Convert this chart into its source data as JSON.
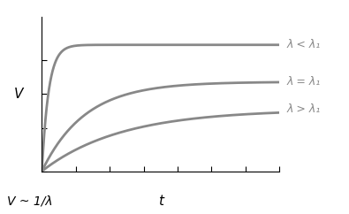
{
  "title": "",
  "xlabel": "t",
  "ylabel": "V",
  "annotation": "V ~ 1/λ",
  "curves": [
    {
      "label": "λ < λ₁",
      "rate": 3.5,
      "asymptote": 0.82,
      "color": "#888888",
      "lw": 2.0
    },
    {
      "label": "λ = λ₁",
      "rate": 0.55,
      "asymptote": 0.58,
      "color": "#888888",
      "lw": 2.0
    },
    {
      "label": "λ > λ₁",
      "rate": 0.3,
      "asymptote": 0.4,
      "color": "#888888",
      "lw": 2.0
    }
  ],
  "t_max": 10.0,
  "xlim": [
    0,
    10.0
  ],
  "ylim": [
    0,
    1.0
  ],
  "background_color": "#ffffff",
  "spine_color": "#000000",
  "tick_color": "#000000",
  "xlabel_fontsize": 11,
  "ylabel_fontsize": 11,
  "annotation_fontsize": 10,
  "curve_label_fontsize": 9,
  "ytick_positions": [
    0.0,
    0.28,
    0.5,
    0.72
  ],
  "xtick_count": 7
}
